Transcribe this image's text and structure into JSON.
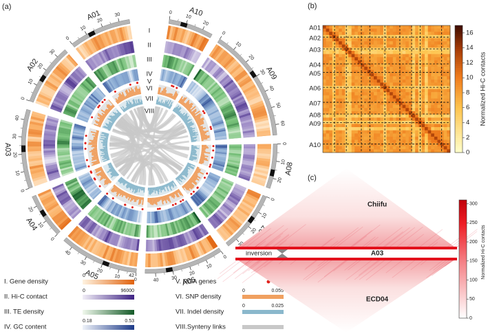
{
  "panels": {
    "a": "(a)",
    "b": "(b)",
    "c": "(c)"
  },
  "circos": {
    "chromosomes": [
      {
        "name": "A10",
        "ticks": [
          0,
          10,
          20
        ]
      },
      {
        "name": "A09",
        "ticks": [
          0,
          10,
          20,
          30,
          40,
          50,
          60
        ]
      },
      {
        "name": "A08",
        "ticks": [
          0,
          10,
          20
        ]
      },
      {
        "name": "A07",
        "ticks": [
          0,
          10,
          20,
          30
        ]
      },
      {
        "name": "A06",
        "ticks": [
          0,
          10,
          20,
          30,
          40
        ]
      },
      {
        "name": "A05",
        "ticks": [
          0,
          10,
          20,
          30,
          40
        ]
      },
      {
        "name": "A04",
        "ticks": [
          0,
          10,
          20
        ]
      },
      {
        "name": "A03",
        "ticks": [
          0,
          10,
          20,
          30,
          40
        ]
      },
      {
        "name": "A02",
        "ticks": [
          0,
          10,
          20,
          30
        ]
      },
      {
        "name": "A01",
        "ticks": [
          0,
          10,
          20,
          30
        ]
      }
    ],
    "track_labels": [
      "I",
      "II",
      "III",
      "IV",
      "V",
      "VI",
      "VII",
      "VIII"
    ]
  },
  "legend": {
    "items": [
      {
        "label": "I.  Gene density",
        "range": [
          0,
          42
        ]
      },
      {
        "label": "II.  Hi-C contact",
        "range": [
          0,
          96000
        ]
      },
      {
        "label": "III.  TE density"
      },
      {
        "label": "IV.  GC content",
        "range": [
          0.18,
          0.53
        ]
      },
      {
        "label": "V.  RGA genes"
      },
      {
        "label": "VI.  SNP density",
        "range": [
          0,
          0.055
        ]
      },
      {
        "label": "VII.  Indel density",
        "range": [
          0,
          0.025
        ]
      },
      {
        "label": "VIII.Synteny links"
      }
    ]
  },
  "hic_b": {
    "chromosomes": [
      "A01",
      "A02",
      "A03",
      "A04",
      "A05",
      "A06",
      "A07",
      "A08",
      "A09",
      "A10"
    ],
    "colorbar_label": "Normalized Hi-C contacts",
    "lim": [
      0,
      17
    ],
    "ticks": [
      0,
      2,
      4,
      6,
      8,
      10,
      12,
      14,
      16
    ]
  },
  "hic_c": {
    "top_label": "Chiifu",
    "band_label": "A03",
    "bottom_label": "ECD04",
    "annotation": "inversion",
    "colorbar_label": "Normalized Hi-C contacts",
    "lim": [
      0,
      310
    ],
    "ticks": [
      0,
      50,
      100,
      150,
      200,
      250,
      300
    ]
  }
}
